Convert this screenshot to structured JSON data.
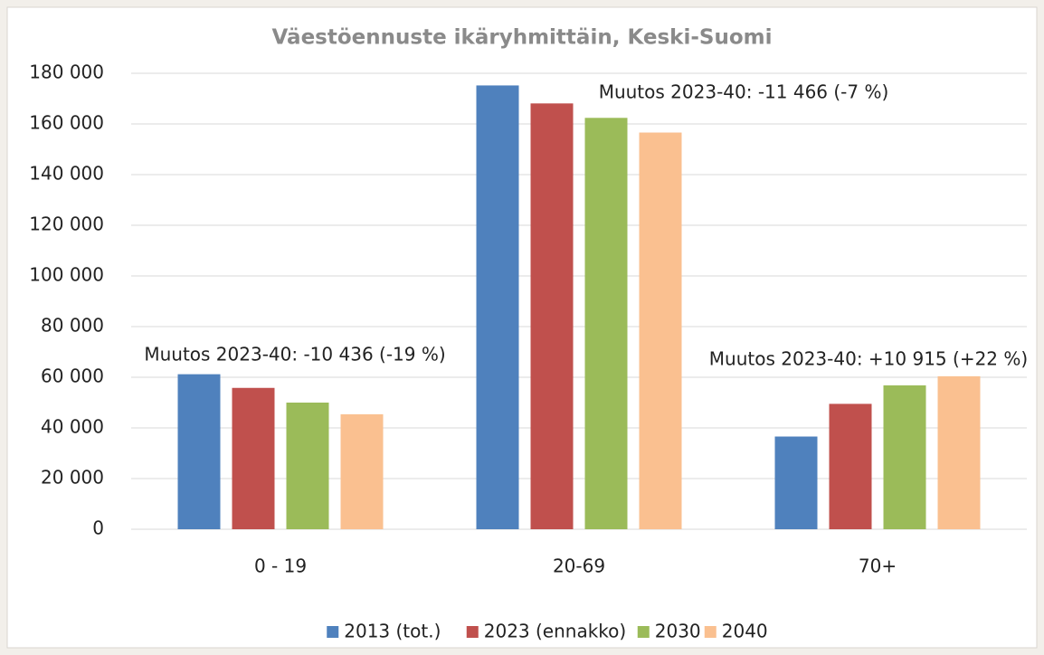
{
  "chart_data": {
    "type": "bar",
    "title": "Väestöennuste ikäryhmittäin, Keski-Suomi",
    "categories": [
      "0 - 19",
      "20-69",
      "70+"
    ],
    "series": [
      {
        "name": "2013 (tot.)",
        "color": "#4f81bd",
        "values": [
          61200,
          175200,
          36600
        ]
      },
      {
        "name": "2023 (ennakko)",
        "color": "#c0504d",
        "values": [
          55800,
          168100,
          49500
        ]
      },
      {
        "name": "2030",
        "color": "#9bbb59",
        "values": [
          50000,
          162400,
          56800
        ]
      },
      {
        "name": "2040",
        "color": "#fac090",
        "values": [
          45400,
          156600,
          60400
        ]
      }
    ],
    "annotations": [
      "Muutos 2023-40: -10 436 (-19 %)",
      "Muutos 2023-40: -11 466 (-7 %)",
      "Muutos 2023-40: +10 915 (+22 %)"
    ],
    "ylim": [
      0,
      180000
    ],
    "yticks": [
      0,
      {
        "value": 20000,
        "label": "20 000"
      },
      {
        "value": 40000,
        "label": "40 000"
      },
      {
        "value": 60000,
        "label": "60 000"
      },
      {
        "value": 80000,
        "label": "80 000"
      },
      {
        "value": 100000,
        "label": "100 000"
      },
      {
        "value": 120000,
        "label": "120 000"
      },
      {
        "value": 140000,
        "label": "140 000"
      },
      {
        "value": 160000,
        "label": "160 000"
      },
      {
        "value": 180000,
        "label": "180 000"
      }
    ],
    "grid": true,
    "legend": "bottom"
  }
}
